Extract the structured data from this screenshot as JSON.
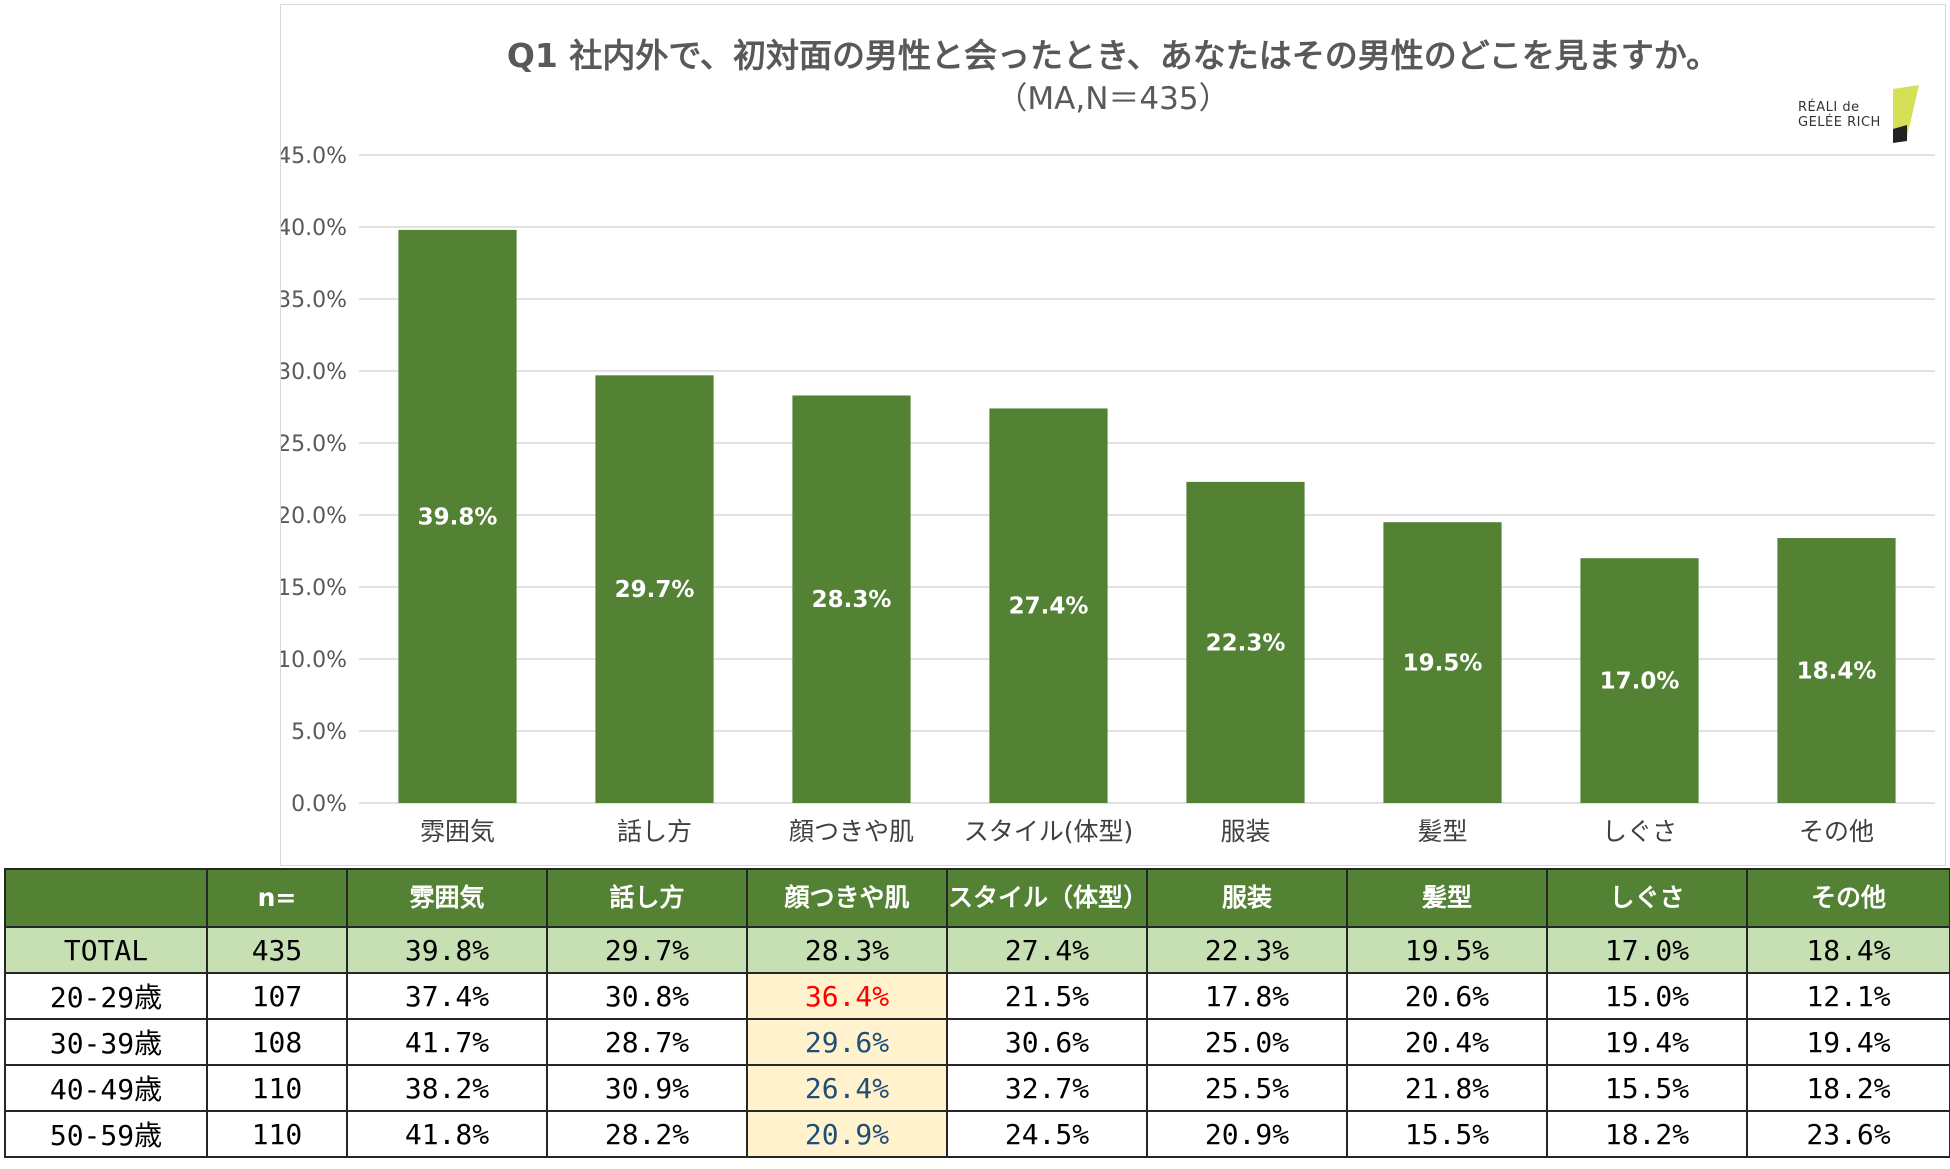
{
  "chart_data": {
    "type": "bar",
    "title": "Q1 社内外で、初対面の男性と会ったとき、あなたはその男性のどこを見ますか。",
    "subtitle": "（MA,N＝435）",
    "categories": [
      "雰囲気",
      "話し方",
      "顔つきや肌",
      "スタイル(体型)",
      "服装",
      "髪型",
      "しぐさ",
      "その他"
    ],
    "values": [
      39.8,
      29.7,
      28.3,
      27.4,
      22.3,
      19.5,
      17.0,
      18.4
    ],
    "data_labels": [
      "39.8%",
      "29.7%",
      "28.3%",
      "27.4%",
      "22.3%",
      "19.5%",
      "17.0%",
      "18.4%"
    ],
    "ylim": [
      0,
      45
    ],
    "y_ticks": [
      "0.0%",
      "5.0%",
      "10.0%",
      "15.0%",
      "20.0%",
      "25.0%",
      "30.0%",
      "35.0%",
      "40.0%",
      "45.0%"
    ],
    "bar_color": "#548235",
    "grid": true,
    "legend": "none"
  },
  "logo": {
    "line1": "RÉALI de",
    "line2": "GELÉE RICH"
  },
  "table": {
    "headers": [
      "",
      "n=",
      "雰囲気",
      "話し方",
      "顔つきや肌",
      "スタイル（体型）",
      "服装",
      "髪型",
      "しぐさ",
      "その他"
    ],
    "rows": [
      {
        "label": "TOTAL",
        "cells": [
          "435",
          "39.8%",
          "29.7%",
          "28.3%",
          "27.4%",
          "22.3%",
          "19.5%",
          "17.0%",
          "18.4%"
        ]
      },
      {
        "label": "20-29歳",
        "cells": [
          "107",
          "37.4%",
          "30.8%",
          "36.4%",
          "21.5%",
          "17.8%",
          "20.6%",
          "15.0%",
          "12.1%"
        ]
      },
      {
        "label": "30-39歳",
        "cells": [
          "108",
          "41.7%",
          "28.7%",
          "29.6%",
          "30.6%",
          "25.0%",
          "20.4%",
          "19.4%",
          "19.4%"
        ]
      },
      {
        "label": "40-49歳",
        "cells": [
          "110",
          "38.2%",
          "30.9%",
          "26.4%",
          "32.7%",
          "25.5%",
          "21.8%",
          "15.5%",
          "18.2%"
        ]
      },
      {
        "label": "50-59歳",
        "cells": [
          "110",
          "41.8%",
          "28.2%",
          "20.9%",
          "24.5%",
          "20.9%",
          "15.5%",
          "18.2%",
          "23.6%"
        ]
      }
    ],
    "colors": {
      "header_bg": "#548235",
      "total_bg": "#c6e0b4",
      "highlight_bg": "#fff2cc",
      "highlight_text": "#1f4e79",
      "max_text": "#ff0000"
    }
  }
}
